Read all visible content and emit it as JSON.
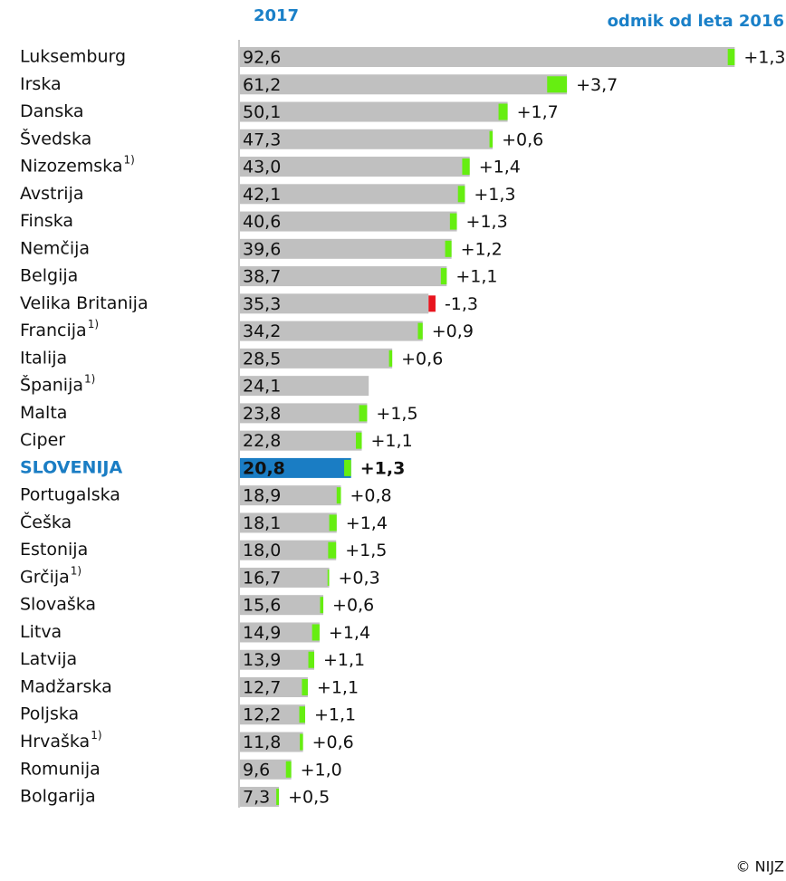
{
  "chart_data": {
    "type": "bar-change",
    "categories": [
      "Luksemburg",
      "Irska",
      "Danska",
      "Švedska",
      "Nizozemska",
      "Avstrija",
      "Finska",
      "Nemčija",
      "Belgija",
      "Velika Britanija",
      "Francija",
      "Italija",
      "Španija",
      "Malta",
      "Ciper",
      "SLOVENIJA",
      "Portugalska",
      "Češka",
      "Estonija",
      "Grčija",
      "Slovaška",
      "Litva",
      "Latvija",
      "Madžarska",
      "Poljska",
      "Hrvaška",
      "Romunija",
      "Bolgarija"
    ],
    "footnotes": [
      null,
      null,
      null,
      null,
      "1)",
      null,
      null,
      null,
      null,
      null,
      "1)",
      null,
      "1)",
      null,
      null,
      null,
      null,
      null,
      null,
      "1)",
      null,
      null,
      null,
      null,
      null,
      "1)",
      null,
      null
    ],
    "series": [
      {
        "name": "2017",
        "color": "#c0c0c0",
        "values": [
          92.6,
          61.2,
          50.1,
          47.3,
          43.0,
          42.1,
          40.6,
          39.6,
          38.7,
          35.3,
          34.2,
          28.5,
          24.1,
          23.8,
          22.8,
          20.8,
          18.9,
          18.1,
          18.0,
          16.7,
          15.6,
          14.9,
          13.9,
          12.7,
          12.2,
          11.8,
          9.6,
          7.3
        ],
        "value_labels": [
          "92,6",
          "61,2",
          "50,1",
          "47,3",
          "43,0",
          "42,1",
          "40,6",
          "39,6",
          "38,7",
          "35,3",
          "34,2",
          "28,5",
          "24,1",
          "23,8",
          "22,8",
          "20,8",
          "18,9",
          "18,1",
          "18,0",
          "16,7",
          "15,6",
          "14,9",
          "13,9",
          "12,7",
          "12,2",
          "11,8",
          "9,6",
          "7,3"
        ]
      },
      {
        "name": "odmik od leta 2016",
        "color": "#66ee11",
        "negative_color": "#e8141e",
        "values": [
          1.3,
          3.7,
          1.7,
          0.6,
          1.4,
          1.3,
          1.3,
          1.2,
          1.1,
          -1.3,
          0.9,
          0.6,
          null,
          1.5,
          1.1,
          1.3,
          0.8,
          1.4,
          1.5,
          0.3,
          0.6,
          1.4,
          1.1,
          1.1,
          1.1,
          0.6,
          1.0,
          0.5
        ],
        "value_labels": [
          "+1,3",
          "+3,7",
          "+1,7",
          "+0,6",
          "+1,4",
          "+1,3",
          "+1,3",
          "+1,2",
          "+1,1",
          "-1,3",
          "+0,9",
          "+0,6",
          null,
          "+1,5",
          "+1,1",
          "+1,3",
          "+0,8",
          "+1,4",
          "+1,5",
          "+0,3",
          "+0,6",
          "+1,4",
          "+1,1",
          "+1,1",
          "+1,1",
          "+0,6",
          "+1,0",
          "+0,5"
        ]
      }
    ],
    "highlight": "SLOVENIJA",
    "highlight_color": "#1a7dc4",
    "xlim": [
      0,
      100
    ],
    "source": "© NIJZ"
  }
}
